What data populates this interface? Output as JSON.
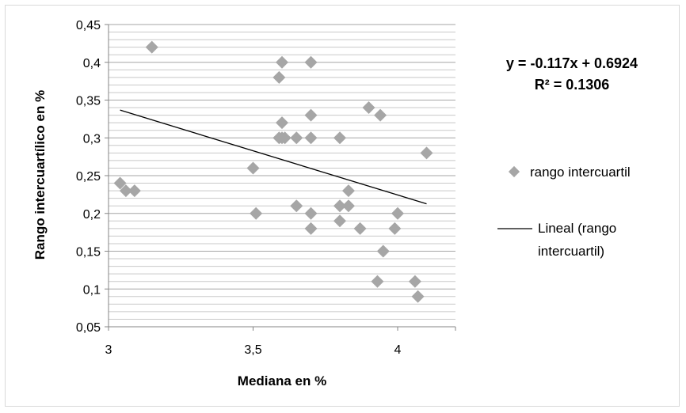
{
  "chart_data": {
    "type": "scatter",
    "title": "",
    "xlabel": "Mediana en %",
    "ylabel": "Rango intercuartílico en %",
    "xlim": [
      3,
      4.2
    ],
    "ylim": [
      0.05,
      0.45
    ],
    "x_ticks": [
      "3",
      "3,5",
      "4"
    ],
    "y_ticks": [
      "0,05",
      "0,1",
      "0,15",
      "0,2",
      "0,25",
      "0,3",
      "0,35",
      "0,4",
      "0,45"
    ],
    "grid": "horizontal minor lines",
    "legend_position": "right",
    "series": [
      {
        "name": "rango intercuartil",
        "marker": "diamond",
        "color": "#a6a6a6",
        "points": [
          [
            3.15,
            0.42
          ],
          [
            3.04,
            0.24
          ],
          [
            3.06,
            0.23
          ],
          [
            3.09,
            0.23
          ],
          [
            3.5,
            0.26
          ],
          [
            3.51,
            0.2
          ],
          [
            3.59,
            0.38
          ],
          [
            3.6,
            0.4
          ],
          [
            3.6,
            0.32
          ],
          [
            3.59,
            0.3
          ],
          [
            3.6,
            0.3
          ],
          [
            3.61,
            0.3
          ],
          [
            3.65,
            0.3
          ],
          [
            3.65,
            0.21
          ],
          [
            3.7,
            0.4
          ],
          [
            3.7,
            0.33
          ],
          [
            3.7,
            0.3
          ],
          [
            3.7,
            0.2
          ],
          [
            3.7,
            0.18
          ],
          [
            3.8,
            0.3
          ],
          [
            3.8,
            0.21
          ],
          [
            3.8,
            0.19
          ],
          [
            3.83,
            0.23
          ],
          [
            3.83,
            0.21
          ],
          [
            3.87,
            0.18
          ],
          [
            3.9,
            0.34
          ],
          [
            3.94,
            0.33
          ],
          [
            3.95,
            0.15
          ],
          [
            3.93,
            0.11
          ],
          [
            4.0,
            0.2
          ],
          [
            3.99,
            0.18
          ],
          [
            4.06,
            0.11
          ],
          [
            4.07,
            0.09
          ],
          [
            4.1,
            0.28
          ]
        ]
      },
      {
        "name": "Lineal (rango intercuartil)",
        "type": "line",
        "color": "#000000",
        "slope": -0.117,
        "intercept": 0.6924,
        "x_range": [
          3.04,
          4.1
        ]
      }
    ],
    "equation": "y = -0.117x + 0.6924",
    "r_squared": "R² = 0.1306"
  },
  "legend": {
    "scatter_label": "rango intercuartil",
    "line_label_1": "Lineal (rango",
    "line_label_2": "intercuartil)"
  }
}
